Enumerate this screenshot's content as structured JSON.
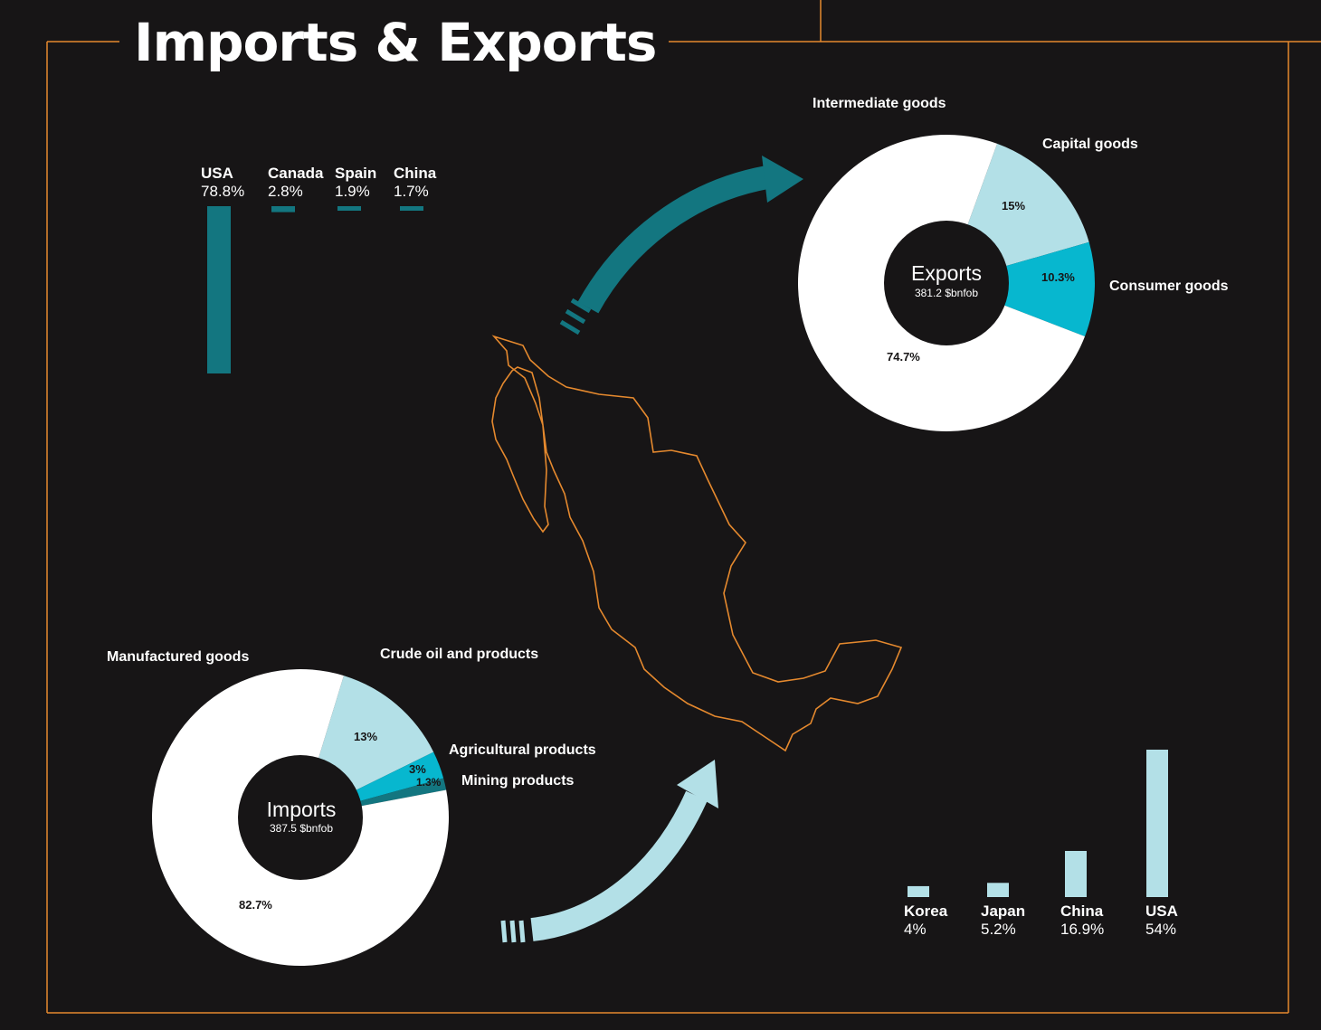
{
  "title": "Imports & Exports",
  "colors": {
    "background": "#171516",
    "frame": "#e5892e",
    "teal_dark": "#137680",
    "teal_light": "#b3e0e7",
    "cyan": "#07b7cf",
    "white": "#ffffff"
  },
  "chart_data": [
    {
      "type": "pie",
      "variant": "donut",
      "center_title": "Exports",
      "center_subtitle": "381.2 $bnfob",
      "slices": [
        {
          "label": "Intermediate goods",
          "value": 74.7,
          "display": "74.7%",
          "color": "#ffffff"
        },
        {
          "label": "Capital goods",
          "value": 15,
          "display": "15%",
          "color": "#b3e0e7"
        },
        {
          "label": "Consumer goods",
          "value": 10.3,
          "display": "10.3%",
          "color": "#07b7cf"
        }
      ]
    },
    {
      "type": "pie",
      "variant": "donut",
      "center_title": "Imports",
      "center_subtitle": "387.5 $bnfob",
      "slices": [
        {
          "label": "Manufactured goods",
          "value": 82.7,
          "display": "82.7%",
          "color": "#ffffff"
        },
        {
          "label": "Crude oil and products",
          "value": 13,
          "display": "13%",
          "color": "#b3e0e7"
        },
        {
          "label": "Agricultural products",
          "value": 3,
          "display": "3%",
          "color": "#07b7cf"
        },
        {
          "label": "Mining products",
          "value": 1.3,
          "display": "1.3%",
          "color": "#137680"
        }
      ]
    },
    {
      "type": "bar",
      "orientation": "vertical",
      "direction": "down",
      "color": "#137680",
      "categories": [
        "USA",
        "Canada",
        "Spain",
        "China"
      ],
      "values": [
        78.8,
        2.8,
        1.9,
        1.7
      ],
      "display": [
        "78.8%",
        "2.8%",
        "1.9%",
        "1.7%"
      ]
    },
    {
      "type": "bar",
      "orientation": "vertical",
      "direction": "up",
      "color": "#b3e0e7",
      "categories": [
        "Korea",
        "Japan",
        "China",
        "USA"
      ],
      "values": [
        4,
        5.2,
        16.9,
        54
      ],
      "display": [
        "4%",
        "5.2%",
        "16.9%",
        "54%"
      ]
    }
  ]
}
